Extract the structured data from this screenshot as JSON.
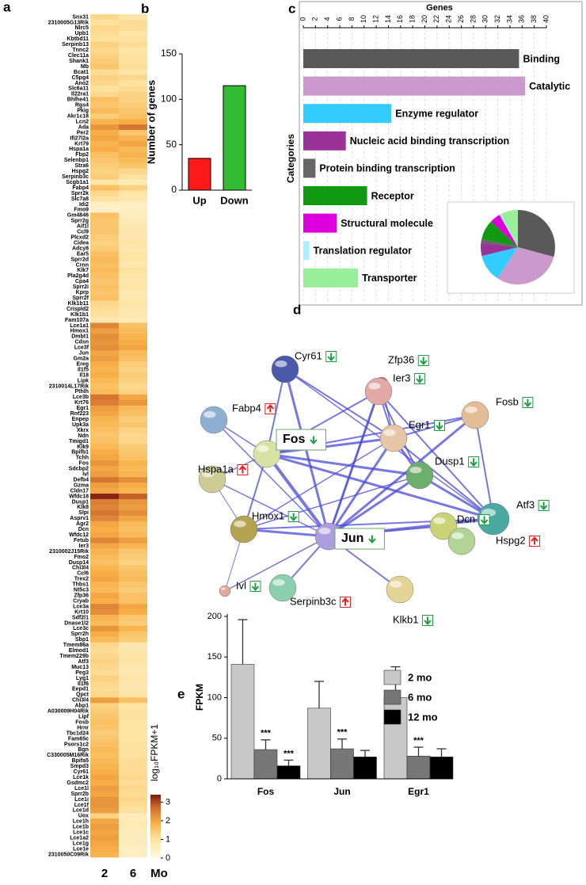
{
  "chart_data": [
    {
      "type": "heatmap",
      "panel": "a",
      "columns": [
        "2",
        "6"
      ],
      "column_unit": "Mo",
      "rows": [
        "Snx31",
        "2310005G13Rik",
        "Nlrc5",
        "Upb1",
        "Kbtbd11",
        "Serpinb13",
        "Tnnc2",
        "Clec11a",
        "Shank1",
        "Mb",
        "Bcat1",
        "C5pg4",
        "Ano2",
        "Slc6a11",
        "Il22ra1",
        "Bhlhe41",
        "Rgs4",
        "Pkig",
        "Akr1c18",
        "Lcn2",
        "Ada",
        "Per2",
        "Ifi27l2a",
        "Krt79",
        "Hspa1a",
        "Fbp2",
        "Selenbp1",
        "Stra6",
        "Hspg2",
        "Serpinb3c",
        "Scgb1a1",
        "Fabp4",
        "Sprr2k",
        "Slc7a8",
        "Idi2",
        "Fmo9",
        "Gm4846",
        "Sprr2g",
        "Aif1l",
        "Ccl9",
        "Plcxd2",
        "Cidea",
        "Adcy8",
        "Ear5",
        "Sprr2d",
        "Crnn",
        "Klk7",
        "Pla2g4d",
        "Cpa4",
        "Sprr2i",
        "Kprp",
        "Sprr2f",
        "Klk1b11",
        "Crispld2",
        "Klk1b1",
        "Fam107a",
        "Lce1a1",
        "Hmox1",
        "Dmbt1",
        "Cdsn",
        "Lce3f",
        "Jun",
        "Gm2a",
        "Ereg",
        "Il1f5",
        "Il18",
        "Lipk",
        "2310014L17Rik",
        "Pthlh",
        "Lce3b",
        "Krt76",
        "Egr1",
        "Rnf223",
        "Enpep",
        "Upk3a",
        "Xkrx",
        "Ndn",
        "Tmigd1",
        "Klk9",
        "Bpifb1",
        "Tchh",
        "Fos",
        "Sdcbp2",
        "Ivl",
        "Defb4",
        "Gzma",
        "Cldn17",
        "Wfdc18",
        "Dusp1",
        "Klk8",
        "Slpi",
        "Asprv1",
        "Agr2",
        "Dcn",
        "Wfdc12",
        "Fetub",
        "Ier3",
        "2310002J15Rik",
        "Fmo2",
        "Dusp14",
        "Chi3l4",
        "Ccl6",
        "Trex2",
        "Thbs1",
        "Nt5c3",
        "Zfp36",
        "Cryab",
        "Lce3a",
        "Krt10",
        "Sdf2l1",
        "Dnase1l2",
        "Lce3c",
        "Sprr2h",
        "Sbp1",
        "Tmem86a",
        "Elmod1",
        "Tmem229b",
        "Atf3",
        "Muc13",
        "Peg3",
        "Lyg1",
        "Il1f6",
        "Eepd1",
        "Qpct",
        "Chi3l4",
        "Abp1",
        "A030009H04Rik",
        "Lipf",
        "Fosb",
        "Hrnr",
        "Tbc1d24",
        "Fam65c",
        "Psors1c2",
        "Bgn",
        "C330005M16Rik",
        "Bpifa5",
        "Smpd3",
        "Cyr61",
        "Lce1k",
        "Gsdmc2",
        "Lce1l",
        "Sprr2b",
        "Lce1i",
        "Lce1f",
        "Lce1d",
        "Uox",
        "Lce1h",
        "Lce1b",
        "Lce1c",
        "Lce1a2",
        "Lce1g",
        "Lce1e",
        "2310050C09Rik"
      ],
      "values": [
        [
          1.2,
          1.0,
          1.2,
          1.1,
          1.0,
          1.3,
          1.2,
          1.3,
          1.4,
          1.5,
          1.1,
          1.3,
          1.2,
          1.0,
          1.2,
          1.6,
          1.5,
          1.7,
          1.4,
          1.8,
          2.2,
          1.9,
          2.0,
          1.8,
          1.9,
          1.6,
          1.5,
          1.4,
          1.3,
          1.4,
          0.9,
          1.6,
          1.2,
          1.0,
          0.5,
          0.4,
          1.6,
          1.5,
          1.5,
          1.5,
          1.4,
          1.3,
          1.4,
          1.6,
          1.7,
          1.6,
          1.7,
          1.6,
          1.5,
          1.6,
          1.5,
          1.6,
          1.2,
          1.1,
          1.0,
          0.8,
          2.4,
          2.1,
          2.3,
          2.2,
          2.3,
          2.0,
          2.1,
          1.9,
          1.8,
          1.9,
          1.7,
          1.6,
          1.7,
          2.6,
          2.5,
          2.1,
          2.0,
          1.8,
          1.7,
          1.6,
          1.5,
          1.6,
          1.7,
          1.9,
          2.0,
          2.2,
          2.0,
          2.1,
          2.6,
          2.1,
          2.0,
          3.3,
          2.5,
          2.4,
          2.6,
          2.4,
          2.0,
          1.9,
          2.0,
          2.4,
          2.0,
          1.8,
          1.7,
          1.6,
          1.8,
          1.9,
          2.0,
          1.8,
          1.7,
          2.0,
          1.9,
          2.4,
          2.3,
          1.8,
          1.7,
          2.2,
          1.9,
          1.7,
          1.2,
          1.1,
          1.2,
          1.3,
          1.2,
          1.1,
          1.3,
          1.2,
          1.1,
          1.2,
          2.1,
          1.3,
          1.4,
          1.5,
          1.6,
          1.5,
          1.4,
          1.5,
          1.6,
          1.7,
          1.6,
          1.7,
          1.8,
          1.9,
          2.0,
          1.9,
          2.1,
          2.0,
          2.2,
          2.2,
          2.1,
          1.3,
          2.0,
          2.1,
          2.0,
          2.1,
          2.0,
          1.9,
          1.8
        ],
        [
          0.9,
          1.1,
          1.1,
          0.9,
          1.0,
          1.1,
          0.9,
          1.0,
          1.0,
          1.1,
          0.9,
          1.2,
          1.0,
          1.1,
          1.3,
          1.3,
          1.4,
          1.5,
          1.6,
          1.9,
          2.6,
          1.5,
          1.8,
          2.0,
          1.7,
          1.8,
          1.7,
          1.5,
          1.2,
          1.0,
          0.7,
          1.3,
          0.9,
          0.8,
          0.5,
          0.5,
          0.6,
          0.7,
          0.8,
          0.8,
          0.8,
          0.9,
          0.8,
          0.9,
          0.9,
          0.8,
          1.0,
          0.9,
          0.8,
          0.9,
          0.8,
          0.8,
          0.9,
          0.8,
          0.8,
          0.7,
          1.6,
          1.7,
          1.8,
          1.9,
          2.0,
          1.7,
          1.6,
          1.4,
          1.3,
          1.4,
          1.3,
          1.2,
          1.3,
          2.0,
          2.2,
          1.7,
          1.6,
          1.4,
          1.5,
          1.3,
          1.2,
          1.2,
          1.4,
          1.5,
          1.6,
          1.8,
          1.7,
          1.8,
          2.3,
          1.9,
          1.8,
          2.8,
          2.2,
          2.1,
          2.3,
          2.0,
          1.7,
          1.6,
          1.7,
          2.1,
          1.8,
          1.5,
          1.4,
          1.3,
          1.5,
          1.6,
          1.7,
          1.5,
          1.4,
          1.6,
          1.6,
          2.0,
          1.9,
          1.5,
          1.4,
          1.8,
          1.5,
          1.4,
          0.8,
          0.8,
          0.9,
          0.9,
          0.8,
          0.8,
          0.9,
          0.8,
          0.8,
          0.9,
          1.6,
          0.9,
          1.0,
          1.0,
          0.9,
          0.9,
          0.9,
          0.9,
          1.0,
          1.0,
          1.0,
          1.1,
          1.1,
          1.1,
          1.2,
          1.1,
          1.2,
          1.1,
          1.2,
          1.1,
          1.0,
          0.6,
          0.7,
          0.7,
          0.6,
          0.6,
          0.6,
          0.5,
          0.5
        ]
      ],
      "colorbar_label": "log₁₀FPKM+1",
      "clim": [
        0,
        3.4
      ],
      "cticks": [
        0,
        1,
        2,
        3
      ]
    },
    {
      "type": "bar",
      "panel": "b",
      "categories": [
        "Up",
        "Down"
      ],
      "values": [
        35,
        115
      ],
      "colors": [
        "#ff1a1a",
        "#33bb33"
      ],
      "ylim": [
        0,
        150
      ],
      "yticks": [
        0,
        50,
        100,
        150
      ],
      "ylabel": "Number of genes"
    },
    {
      "type": "barh",
      "panel": "c",
      "categories": [
        "Binding",
        "Catalytic",
        "Enzyme regulator",
        "Nucleic acid binding transcription",
        "Protein binding transcription",
        "Receptor",
        "Structural molecule",
        "Translation regulator",
        "Transporter"
      ],
      "values": [
        35.5,
        36.5,
        14.5,
        7,
        2,
        10.5,
        5.5,
        1,
        9
      ],
      "colors": [
        "#595959",
        "#cc99cc",
        "#33ccff",
        "#993399",
        "#666666",
        "#119911",
        "#dd00dd",
        "#aaeeff",
        "#99ee99"
      ],
      "xlim": [
        0,
        40
      ],
      "xticks": [
        0,
        2,
        4,
        6,
        8,
        10,
        12,
        14,
        16,
        18,
        20,
        22,
        24,
        26,
        28,
        30,
        32,
        34,
        36,
        38,
        40
      ],
      "xlabel": "Genes",
      "ylabel": "Categories",
      "grid": true,
      "inset": "pie"
    },
    {
      "type": "grouped_bar",
      "panel": "e",
      "categories": [
        "Fos",
        "Jun",
        "Egr1"
      ],
      "series": [
        {
          "name": "2 mo",
          "color": "#c8c8c8",
          "values": [
            141,
            87,
            100
          ],
          "errors": [
            55,
            33,
            38
          ],
          "significance": [
            null,
            null,
            null
          ]
        },
        {
          "name": "6 mo",
          "color": "#777777",
          "values": [
            36,
            37,
            28
          ],
          "errors": [
            12,
            12,
            11
          ],
          "significance": [
            "***",
            "***",
            "***"
          ]
        },
        {
          "name": "12 mo",
          "color": "#000000",
          "values": [
            16,
            27,
            27
          ],
          "errors": [
            7,
            8,
            10
          ],
          "significance": [
            "***",
            null,
            null
          ]
        }
      ],
      "ylim": [
        0,
        200
      ],
      "yticks": [
        0,
        50,
        100,
        150,
        200
      ],
      "ylabel": "FPKM",
      "legend": "top right"
    }
  ],
  "network": {
    "panel": "d",
    "nodes": [
      {
        "label": "Ier3",
        "change": "down"
      },
      {
        "label": "Cyr61",
        "change": "down"
      },
      {
        "label": "Zfp36",
        "change": "down"
      },
      {
        "label": "Fabp4",
        "change": "up"
      },
      {
        "label": "Fosb",
        "change": "down"
      },
      {
        "label": "Fos",
        "change": "down"
      },
      {
        "label": "Egr1",
        "change": "down"
      },
      {
        "label": "Hspa1a",
        "change": "up"
      },
      {
        "label": "Dusp1",
        "change": "down"
      },
      {
        "label": "Atf3",
        "change": "down"
      },
      {
        "label": "Hmox1",
        "change": "down"
      },
      {
        "label": "Jun",
        "change": "down"
      },
      {
        "label": "Dcn",
        "change": "down"
      },
      {
        "label": "Hspg2",
        "change": "up"
      },
      {
        "label": "Ivl",
        "change": "down"
      },
      {
        "label": "Serpinb3c",
        "change": "up"
      },
      {
        "label": "Klkb1",
        "change": "down"
      }
    ]
  }
}
